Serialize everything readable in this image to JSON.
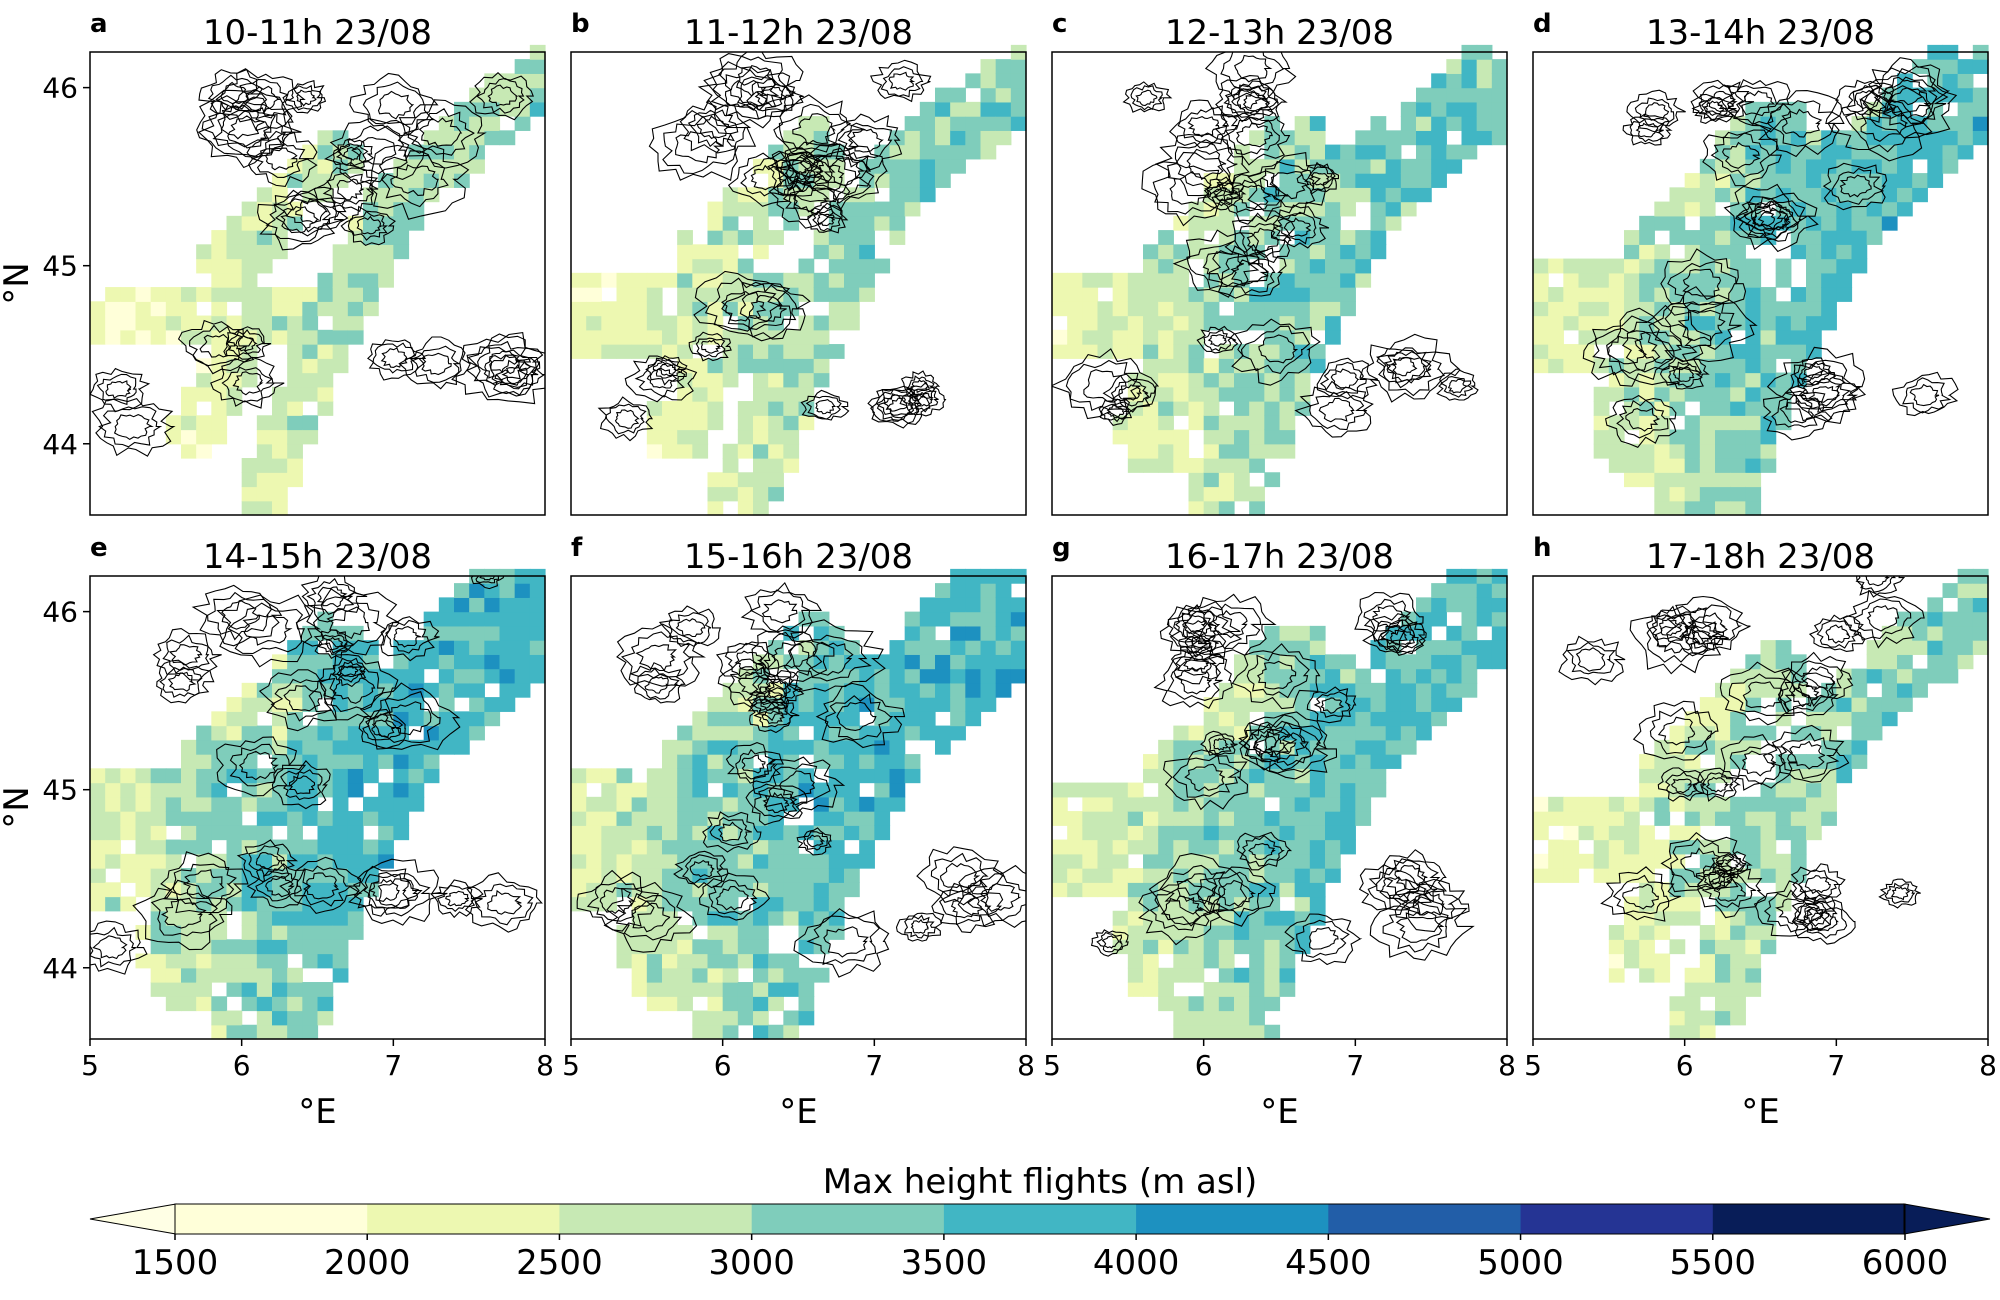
{
  "figure": {
    "colorbar": {
      "label": "Max height flights (m asl)",
      "ticks": [
        "1500",
        "2000",
        "2500",
        "3000",
        "3500",
        "4000",
        "4500",
        "5000",
        "5500",
        "6000"
      ],
      "colors": [
        "#ffffd9",
        "#edf8b1",
        "#c7e9b4",
        "#7fcdbb",
        "#41b6c4",
        "#1d91c0",
        "#225ea8",
        "#253494",
        "#081d58"
      ],
      "under_color": "#ffffe5",
      "over_color": "#081d58",
      "extend": "both"
    }
  },
  "chart_data": [
    {
      "type": "heatmap",
      "panel_label": "a",
      "title": "10-11h 23/08",
      "xlabel": "",
      "ylabel": "°N",
      "xlim": [
        5,
        8
      ],
      "ylim": [
        43.6,
        46.2
      ],
      "x_ticks": [],
      "y_ticks": [
        "44",
        "45",
        "46"
      ],
      "extent": 1
    },
    {
      "type": "heatmap",
      "panel_label": "b",
      "title": "11-12h 23/08",
      "xlabel": "",
      "ylabel": "",
      "xlim": [
        5,
        8
      ],
      "ylim": [
        43.6,
        46.2
      ],
      "x_ticks": [],
      "y_ticks": [],
      "extent": 2
    },
    {
      "type": "heatmap",
      "panel_label": "c",
      "title": "12-13h 23/08",
      "xlabel": "",
      "ylabel": "",
      "xlim": [
        5,
        8
      ],
      "ylim": [
        43.6,
        46.2
      ],
      "x_ticks": [],
      "y_ticks": [],
      "extent": 3
    },
    {
      "type": "heatmap",
      "panel_label": "d",
      "title": "13-14h 23/08",
      "xlabel": "",
      "ylabel": "",
      "xlim": [
        5,
        8
      ],
      "ylim": [
        43.6,
        46.2
      ],
      "x_ticks": [],
      "y_ticks": [],
      "extent": 4
    },
    {
      "type": "heatmap",
      "panel_label": "e",
      "title": "14-15h 23/08",
      "xlabel": "°E",
      "ylabel": "°N",
      "xlim": [
        5,
        8
      ],
      "ylim": [
        43.6,
        46.2
      ],
      "x_ticks": [
        "5",
        "6",
        "7",
        "8"
      ],
      "y_ticks": [
        "44",
        "45",
        "46"
      ],
      "extent": 5
    },
    {
      "type": "heatmap",
      "panel_label": "f",
      "title": "15-16h 23/08",
      "xlabel": "°E",
      "ylabel": "",
      "xlim": [
        5,
        8
      ],
      "ylim": [
        43.6,
        46.2
      ],
      "x_ticks": [
        "5",
        "6",
        "7",
        "8"
      ],
      "y_ticks": [],
      "extent": 5
    },
    {
      "type": "heatmap",
      "panel_label": "g",
      "title": "16-17h 23/08",
      "xlabel": "°E",
      "ylabel": "",
      "xlim": [
        5,
        8
      ],
      "ylim": [
        43.6,
        46.2
      ],
      "x_ticks": [
        "5",
        "6",
        "7",
        "8"
      ],
      "y_ticks": [],
      "extent": 4
    },
    {
      "type": "heatmap",
      "panel_label": "h",
      "title": "17-18h 23/08",
      "xlabel": "°E",
      "ylabel": "",
      "xlim": [
        5,
        8
      ],
      "ylim": [
        43.6,
        46.2
      ],
      "x_ticks": [
        "5",
        "6",
        "7",
        "8"
      ],
      "y_ticks": [],
      "extent": 2
    }
  ]
}
